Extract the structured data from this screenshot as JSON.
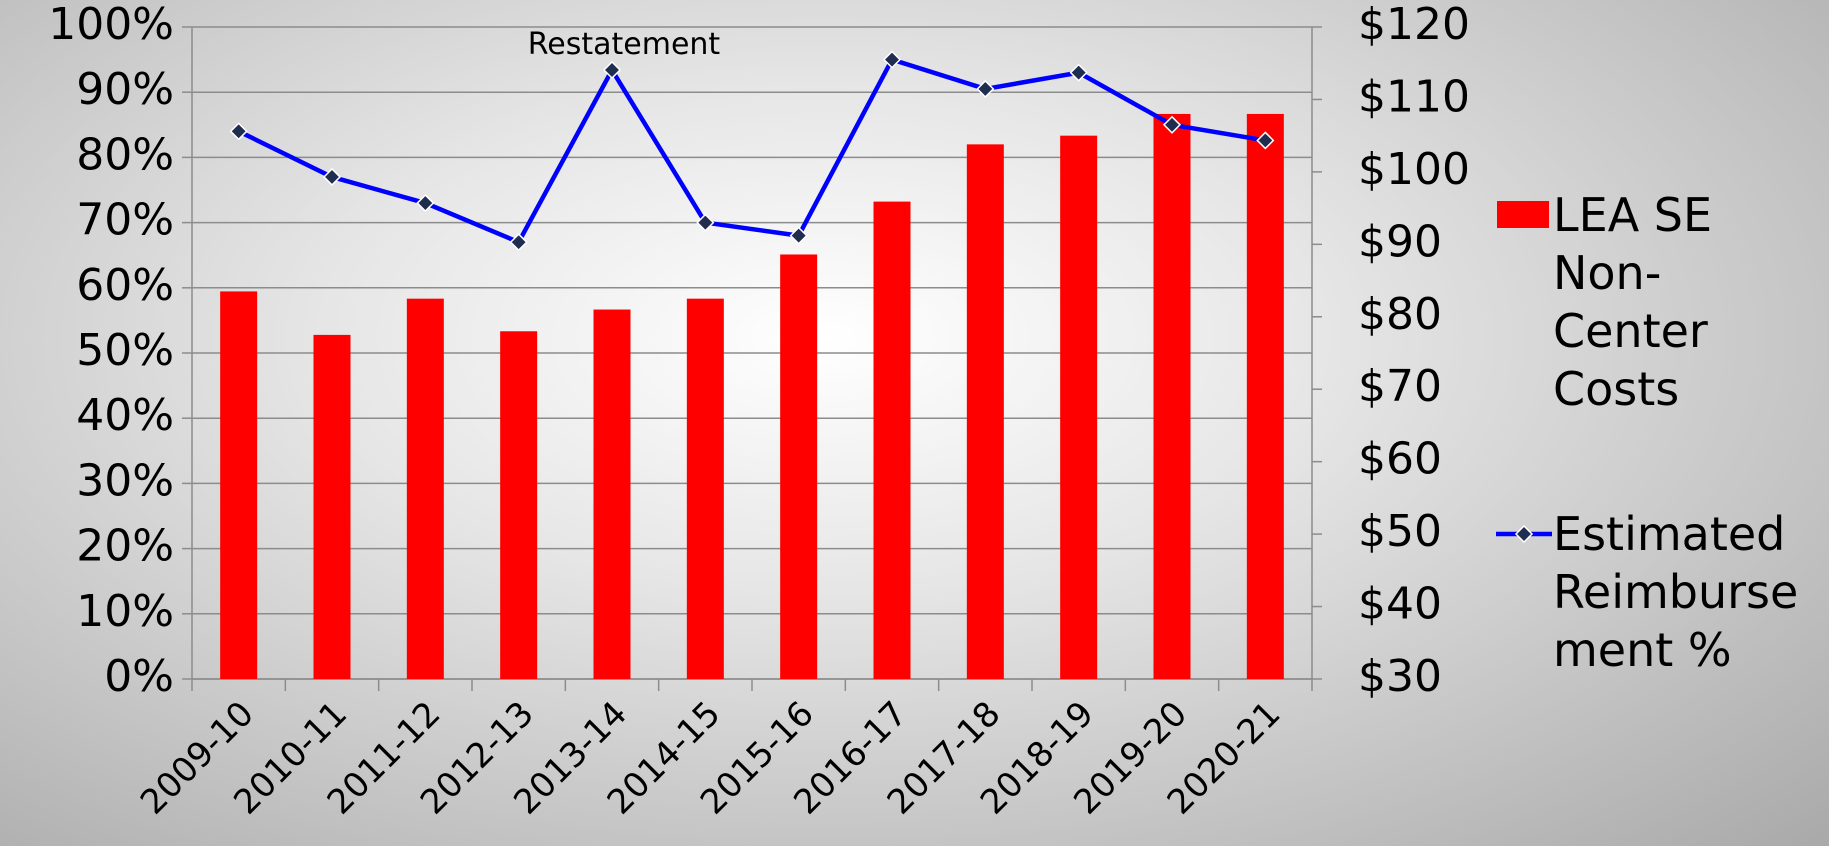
{
  "chart_data": {
    "type": "bar-line",
    "categories": [
      "2009-10",
      "2010-11",
      "2011-12",
      "2012-13",
      "2013-14",
      "2014-15",
      "2015-16",
      "2016-17",
      "2017-18",
      "2018-19",
      "2019-20",
      "2020-21"
    ],
    "series": [
      {
        "name": "LEA SE Non-Center Costs",
        "type": "bar",
        "axis": "y2",
        "color": "#ff0000",
        "values": [
          83.5,
          77.5,
          82.5,
          78,
          81,
          82.5,
          88.6,
          95.9,
          103.8,
          105,
          108,
          108
        ]
      },
      {
        "name": "Estimated Reimbursement %",
        "type": "line",
        "axis": "y",
        "color": "#0000ff",
        "marker_color": "#1f2d4f",
        "values": [
          84,
          77,
          73,
          67,
          93.4,
          70,
          68,
          95,
          90.5,
          93,
          85,
          82.6
        ]
      }
    ],
    "annotations": [
      {
        "text": "Restatement",
        "category": 4,
        "y": 97.5
      }
    ],
    "ylim": [
      0,
      100
    ],
    "yticks": [
      {
        "value": 0,
        "label": "0%"
      },
      {
        "value": 10,
        "label": "10%"
      },
      {
        "value": 20,
        "label": "20%"
      },
      {
        "value": 30,
        "label": "30%"
      },
      {
        "value": 40,
        "label": "40%"
      },
      {
        "value": 50,
        "label": "50%"
      },
      {
        "value": 60,
        "label": "60%"
      },
      {
        "value": 70,
        "label": "70%"
      },
      {
        "value": 80,
        "label": "80%"
      },
      {
        "value": 90,
        "label": "90%"
      },
      {
        "value": 100,
        "label": "100%"
      }
    ],
    "y2lim": [
      30,
      120
    ],
    "y2ticks": [
      {
        "value": 30,
        "label": "$30"
      },
      {
        "value": 40,
        "label": "$40"
      },
      {
        "value": 50,
        "label": "$50"
      },
      {
        "value": 60,
        "label": "$60"
      },
      {
        "value": 70,
        "label": "$70"
      },
      {
        "value": 80,
        "label": "$80"
      },
      {
        "value": 90,
        "label": "$90"
      },
      {
        "value": 100,
        "label": "$100"
      },
      {
        "value": 110,
        "label": "$110"
      },
      {
        "value": 120,
        "label": "$120"
      }
    ],
    "grid": true,
    "legend": "right"
  }
}
